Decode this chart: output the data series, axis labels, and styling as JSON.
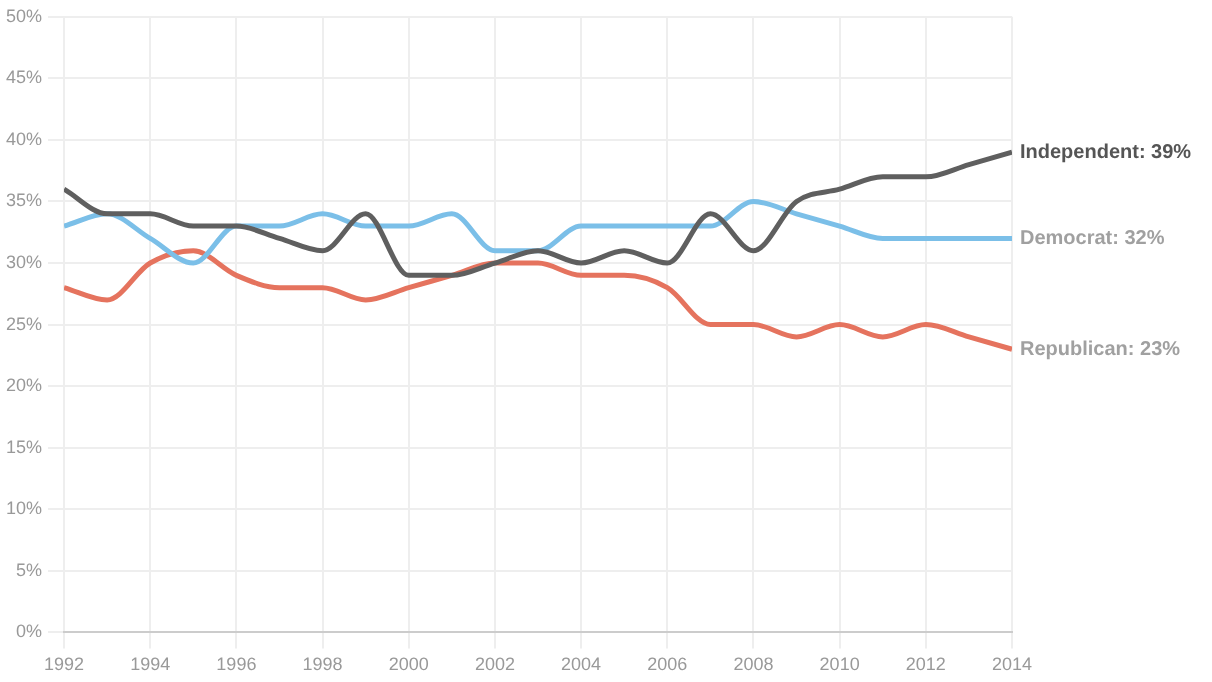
{
  "chart_data": {
    "type": "line",
    "x": [
      1992,
      1993,
      1994,
      1995,
      1996,
      1997,
      1998,
      1999,
      2000,
      2001,
      2002,
      2003,
      2004,
      2005,
      2006,
      2007,
      2008,
      2009,
      2010,
      2011,
      2012,
      2013,
      2014
    ],
    "series": [
      {
        "name": "Independent: 39%",
        "color": "#5f5f5f",
        "values": [
          36,
          34,
          34,
          33,
          33,
          32,
          31,
          34,
          29,
          29,
          30,
          31,
          30,
          31,
          30,
          34,
          31,
          35,
          36,
          37,
          37,
          38,
          39
        ]
      },
      {
        "name": "Democrat: 32%",
        "color": "#7bbfe8",
        "values": [
          33,
          34,
          32,
          30,
          33,
          33,
          34,
          33,
          33,
          34,
          31,
          31,
          33,
          33,
          33,
          33,
          35,
          34,
          33,
          32,
          32,
          32,
          32
        ]
      },
      {
        "name": "Republican: 23%",
        "color": "#e5735e",
        "values": [
          28,
          27,
          30,
          31,
          29,
          28,
          28,
          27,
          28,
          29,
          30,
          30,
          29,
          29,
          28,
          25,
          25,
          24,
          25,
          24,
          25,
          24,
          23
        ]
      }
    ],
    "xlim": [
      1992,
      2014
    ],
    "xticks": [
      1992,
      1994,
      1996,
      1998,
      2000,
      2002,
      2004,
      2006,
      2008,
      2010,
      2012,
      2014
    ],
    "ylim": [
      0,
      50
    ],
    "yticks": [
      {
        "value": 0,
        "label": "0%"
      },
      {
        "value": 5,
        "label": "5%"
      },
      {
        "value": 10,
        "label": "10%"
      },
      {
        "value": 15,
        "label": "15%"
      },
      {
        "value": 20,
        "label": "20%"
      },
      {
        "value": 25,
        "label": "25%"
      },
      {
        "value": 30,
        "label": "30%"
      },
      {
        "value": 35,
        "label": "35%"
      },
      {
        "value": 40,
        "label": "40%"
      },
      {
        "value": 45,
        "label": "45%"
      },
      {
        "value": 50,
        "label": "50%"
      }
    ],
    "grid": true,
    "legend": false,
    "marker": "none",
    "line_style": "solid"
  }
}
